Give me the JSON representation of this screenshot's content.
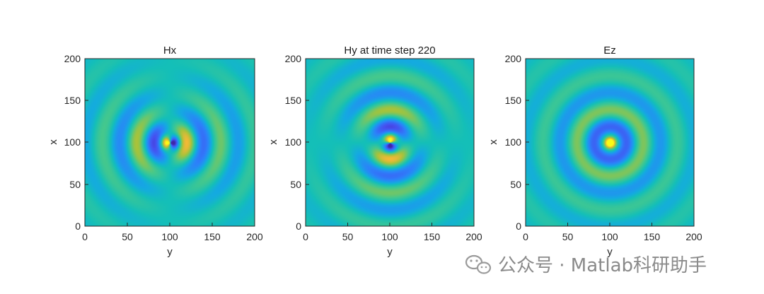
{
  "chart_data": [
    {
      "type": "heatmap",
      "title": "Hx",
      "xlabel": "y",
      "ylabel": "x",
      "xlim": [
        0,
        200
      ],
      "ylim": [
        0,
        200
      ],
      "xticks": [
        "0",
        "50",
        "100",
        "150",
        "200"
      ],
      "yticks": [
        "0",
        "50",
        "100",
        "150",
        "200"
      ],
      "field": "Hx",
      "time_step": 220,
      "source_center": [
        100,
        100
      ],
      "peak_positive_at": [
        90,
        100
      ],
      "peak_negative_at": [
        112,
        100
      ],
      "colormap": "parula"
    },
    {
      "type": "heatmap",
      "title": "Hy at time step 220",
      "xlabel": "y",
      "ylabel": "x",
      "xlim": [
        0,
        200
      ],
      "ylim": [
        0,
        200
      ],
      "xticks": [
        "0",
        "50",
        "100",
        "150",
        "200"
      ],
      "yticks": [
        "0",
        "50",
        "100",
        "150",
        "200"
      ],
      "field": "Hy",
      "time_step": 220,
      "source_center": [
        100,
        100
      ],
      "peak_positive_at": [
        100,
        112
      ],
      "peak_negative_at": [
        100,
        88
      ],
      "colormap": "parula"
    },
    {
      "type": "heatmap",
      "title": "Ez",
      "xlabel": "y",
      "ylabel": "x",
      "xlim": [
        0,
        200
      ],
      "ylim": [
        0,
        200
      ],
      "xticks": [
        "0",
        "50",
        "100",
        "150",
        "200"
      ],
      "yticks": [
        "0",
        "50",
        "100",
        "150",
        "200"
      ],
      "field": "Ez",
      "time_step": 220,
      "source_center": [
        100,
        100
      ],
      "peak_positive_at": [
        100,
        100
      ],
      "colormap": "parula"
    }
  ],
  "watermark": {
    "text": "公众号 · Matlab科研助手",
    "icon": "wechat-icon"
  },
  "colors": {
    "colormap_low": "#3e26a8",
    "colormap_mid": "#14bfb8",
    "colormap_high": "#f9fb15"
  }
}
